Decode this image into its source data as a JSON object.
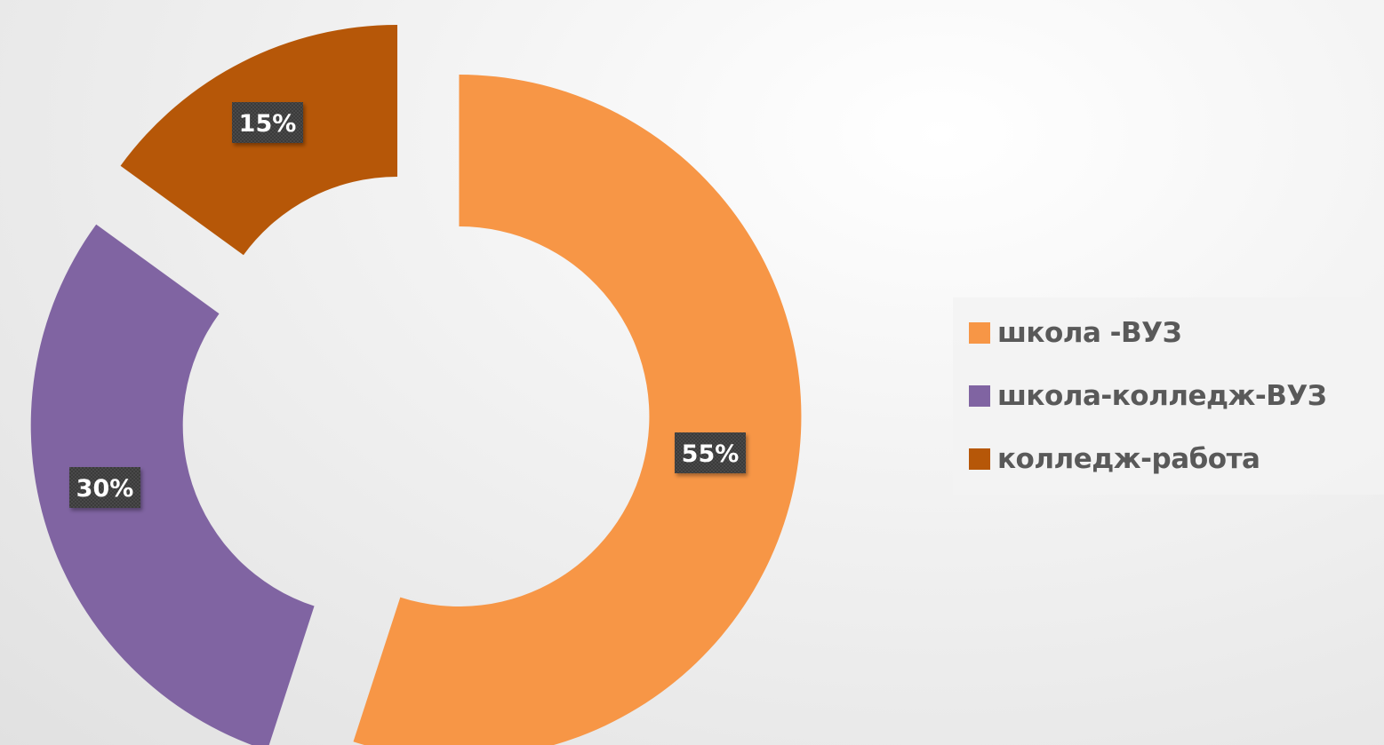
{
  "chart_data": {
    "type": "pie",
    "donut": true,
    "exploded": true,
    "categories": [
      "школа -ВУЗ",
      "школа-колледж-ВУЗ",
      "колледж-работа"
    ],
    "values": [
      55,
      30,
      15
    ],
    "data_labels": [
      "55%",
      "30%",
      "15%"
    ],
    "colors": [
      "#F79646",
      "#8064A2",
      "#B65708"
    ],
    "legend_position": "right",
    "title": ""
  }
}
